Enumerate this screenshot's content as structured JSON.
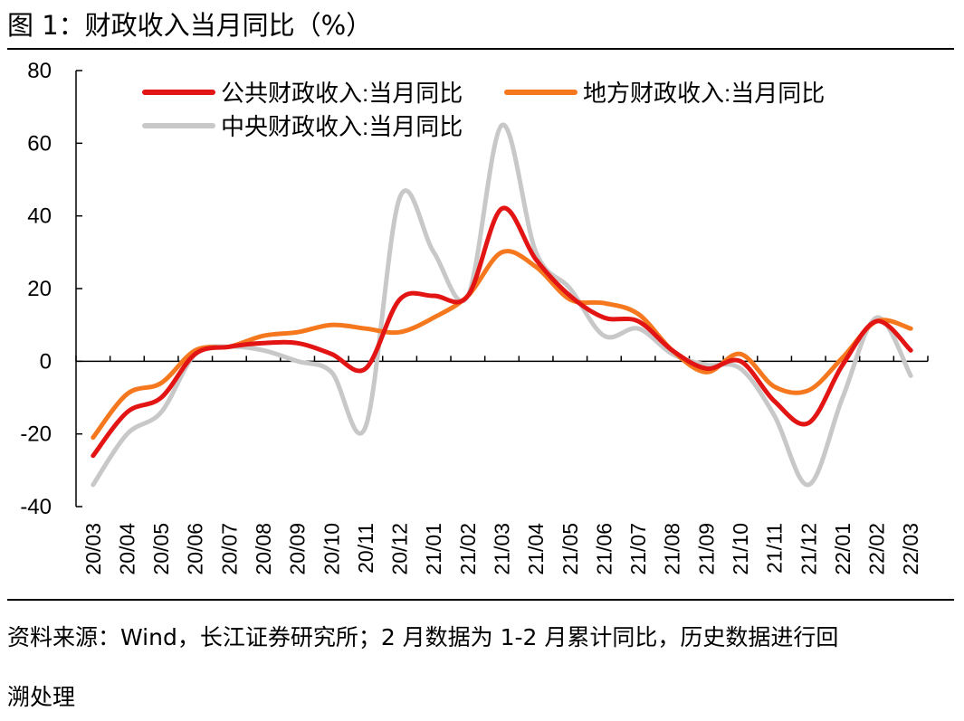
{
  "figure": {
    "title": "图  1：财政收入当月同比（%）",
    "source_line1": "资料来源：Wind，长江证券研究所；2 月数据为 1-2 月累计同比，历史数据进行回",
    "source_line2": "溯处理"
  },
  "chart_data": {
    "type": "line",
    "title": "财政收入当月同比（%）",
    "xlabel": "",
    "ylabel": "",
    "ylim": [
      -40,
      80
    ],
    "yticks": [
      -40,
      -20,
      0,
      20,
      40,
      60,
      80
    ],
    "ytick_labels": [
      "-40",
      "-20",
      "0",
      "20",
      "40",
      "60",
      "80"
    ],
    "grid": false,
    "legend_position": "top",
    "categories": [
      "20/03",
      "20/04",
      "20/05",
      "20/06",
      "20/07",
      "20/08",
      "20/09",
      "20/10",
      "20/11",
      "20/12",
      "21/01",
      "21/02",
      "21/03",
      "21/04",
      "21/05",
      "21/06",
      "21/07",
      "21/08",
      "21/09",
      "21/10",
      "21/11",
      "21/12",
      "22/01",
      "22/02",
      "22/03"
    ],
    "series": [
      {
        "name": "公共财政收入:当月同比",
        "color": "#e31414",
        "values": [
          -26,
          -14,
          -10,
          2,
          4,
          5,
          5,
          2,
          -2,
          17,
          18,
          18,
          42,
          28,
          18,
          12,
          11,
          3,
          -2,
          0,
          -11,
          -17,
          -1,
          11,
          3
        ]
      },
      {
        "name": "地方财政收入:当月同比",
        "color": "#f5781e",
        "values": [
          -21,
          -9,
          -6,
          3,
          4,
          7,
          8,
          10,
          9,
          8,
          12,
          18,
          30,
          26,
          17,
          16,
          13,
          3,
          -3,
          2,
          -7,
          -8,
          1,
          11,
          9
        ]
      },
      {
        "name": "中央财政收入:当月同比",
        "color": "#c8c8c8",
        "values": [
          -34,
          -20,
          -14,
          2,
          4,
          3,
          0,
          -3,
          -18,
          45,
          30,
          18,
          65,
          30,
          20,
          7,
          9,
          2,
          -1,
          -2,
          -15,
          -34,
          -10,
          12,
          -4
        ]
      }
    ]
  }
}
